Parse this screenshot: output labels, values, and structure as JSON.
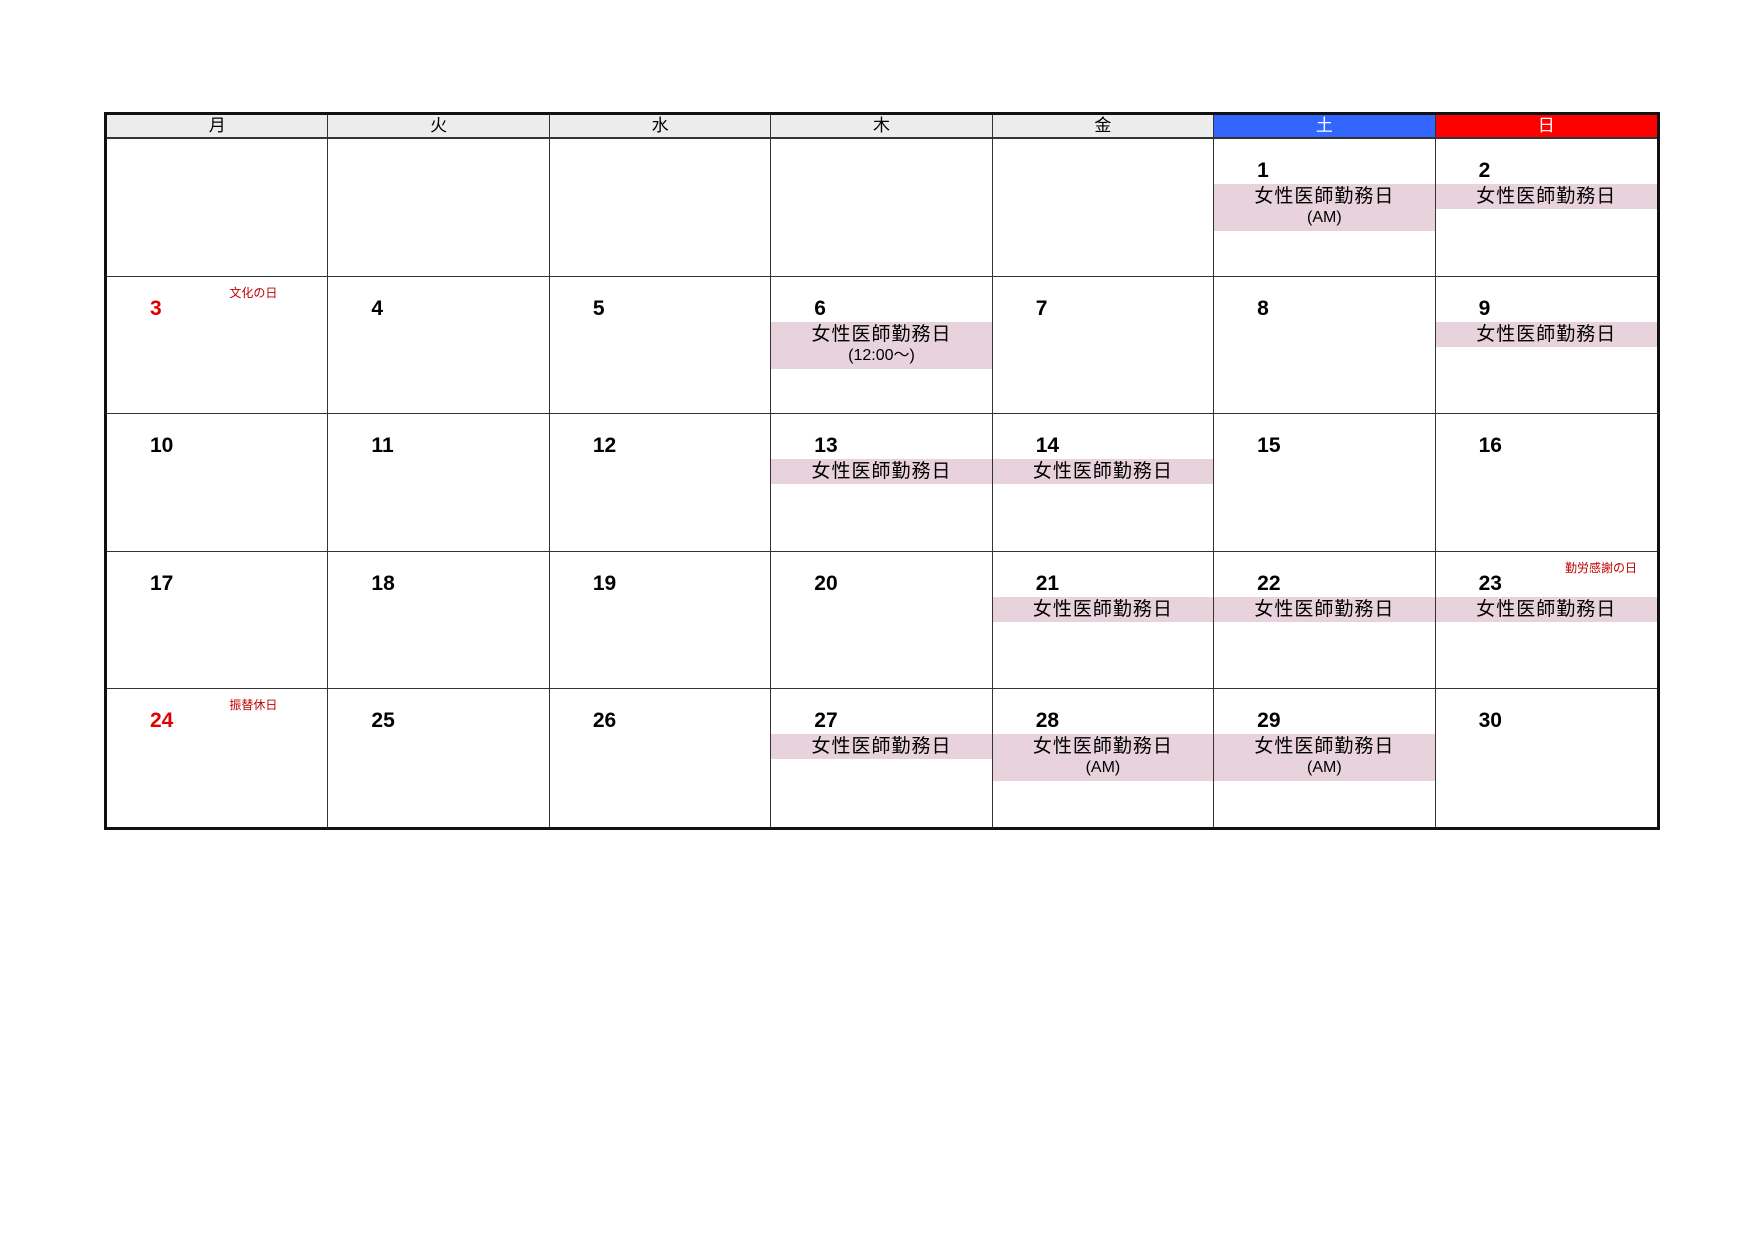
{
  "weekdays": [
    "月",
    "火",
    "水",
    "木",
    "金",
    "土",
    "日"
  ],
  "colors": {
    "saturday_header": "#3366ff",
    "sunday_header": "#ff0000",
    "duty_band": "#e8d2dc",
    "holiday_text": "#c00000"
  },
  "cells": [
    null,
    null,
    null,
    null,
    null,
    {
      "day": "1",
      "duty": {
        "label": "女性医師勤務日",
        "note": "(AM)"
      }
    },
    {
      "day": "2",
      "duty": {
        "label": "女性医師勤務日"
      }
    },
    {
      "day": "3",
      "red": true,
      "holiday": "文化の日"
    },
    {
      "day": "4"
    },
    {
      "day": "5"
    },
    {
      "day": "6",
      "duty": {
        "label": "女性医師勤務日",
        "note": "(12:00～)"
      }
    },
    {
      "day": "7"
    },
    {
      "day": "8"
    },
    {
      "day": "9",
      "duty": {
        "label": "女性医師勤務日"
      }
    },
    {
      "day": "10"
    },
    {
      "day": "11"
    },
    {
      "day": "12"
    },
    {
      "day": "13",
      "duty": {
        "label": "女性医師勤務日"
      }
    },
    {
      "day": "14",
      "duty": {
        "label": "女性医師勤務日"
      }
    },
    {
      "day": "15"
    },
    {
      "day": "16"
    },
    {
      "day": "17"
    },
    {
      "day": "18"
    },
    {
      "day": "19"
    },
    {
      "day": "20"
    },
    {
      "day": "21",
      "duty": {
        "label": "女性医師勤務日"
      }
    },
    {
      "day": "22",
      "duty": {
        "label": "女性医師勤務日"
      }
    },
    {
      "day": "23",
      "holiday": "勤労感謝の日",
      "duty": {
        "label": "女性医師勤務日"
      }
    },
    {
      "day": "24",
      "red": true,
      "holiday": "振替休日"
    },
    {
      "day": "25"
    },
    {
      "day": "26"
    },
    {
      "day": "27",
      "duty": {
        "label": "女性医師勤務日"
      }
    },
    {
      "day": "28",
      "duty": {
        "label": "女性医師勤務日",
        "note": "(AM)"
      }
    },
    {
      "day": "29",
      "duty": {
        "label": "女性医師勤務日",
        "note": "(AM)"
      }
    },
    {
      "day": "30"
    }
  ]
}
